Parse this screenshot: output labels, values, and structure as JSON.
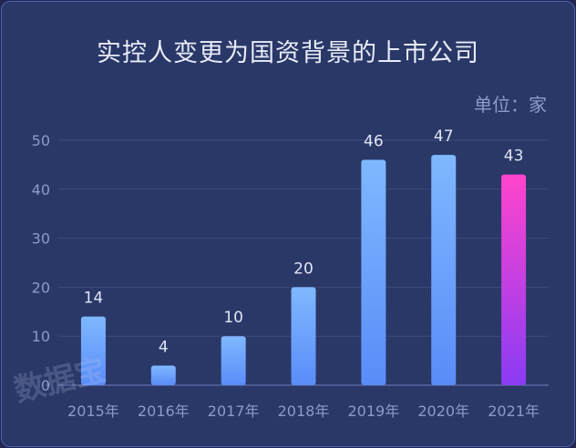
{
  "chart_data": {
    "type": "bar",
    "title": "实控人变更为国资背景的上市公司",
    "unit_label": "单位：家",
    "categories": [
      "2015年",
      "2016年",
      "2017年",
      "2018年",
      "2019年",
      "2020年",
      "2021年"
    ],
    "values": [
      14,
      4,
      10,
      20,
      46,
      47,
      43
    ],
    "ylim": [
      0,
      50
    ],
    "yticks": [
      0,
      10,
      20,
      30,
      40,
      50
    ],
    "xlabel": "",
    "ylabel": "",
    "grid": true,
    "colors": {
      "bar_top": "#7fb8ff",
      "bar_bottom": "#5a8cf8",
      "highlight_top": "#ff44cc",
      "highlight_bottom": "#8a3cf5",
      "grid": "#3d4a7e"
    },
    "highlight_index": 6
  },
  "watermark": "数据宝"
}
